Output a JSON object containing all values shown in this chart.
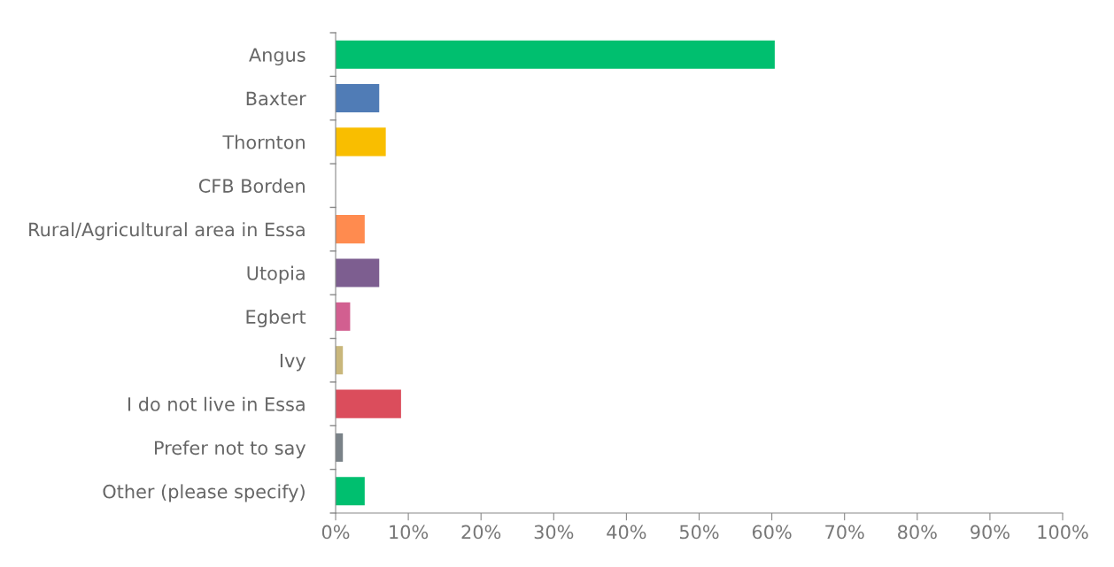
{
  "chart_data": {
    "type": "bar",
    "orientation": "horizontal",
    "categories": [
      "Angus",
      "Baxter",
      "Thornton",
      "CFB Borden",
      "Rural/Agricultural area in Essa",
      "Utopia",
      "Egbert",
      "Ivy",
      "I do not live in Essa",
      "Prefer not to say",
      "Other (please specify)"
    ],
    "values": [
      60.4,
      6.0,
      6.9,
      0,
      4.0,
      6.0,
      2.0,
      1.0,
      9.0,
      1.0,
      4.0
    ],
    "colors": [
      "#00bf6f",
      "#507cb6",
      "#f9be00",
      "#6bc8cd",
      "#ff8b4f",
      "#7d5e90",
      "#d25f90",
      "#c9b77b",
      "#db4d5c",
      "#7a8288",
      "#00bf6f"
    ],
    "xlim": [
      0,
      100
    ],
    "xticks": [
      {
        "value": 0,
        "label": "0%"
      },
      {
        "value": 10,
        "label": "10%"
      },
      {
        "value": 20,
        "label": "20%"
      },
      {
        "value": 30,
        "label": "30%"
      },
      {
        "value": 40,
        "label": "40%"
      },
      {
        "value": 50,
        "label": "50%"
      },
      {
        "value": 60,
        "label": "60%"
      },
      {
        "value": 70,
        "label": "70%"
      },
      {
        "value": 80,
        "label": "80%"
      },
      {
        "value": 90,
        "label": "90%"
      },
      {
        "value": 100,
        "label": "100%"
      }
    ],
    "grid": false,
    "legend": false
  }
}
